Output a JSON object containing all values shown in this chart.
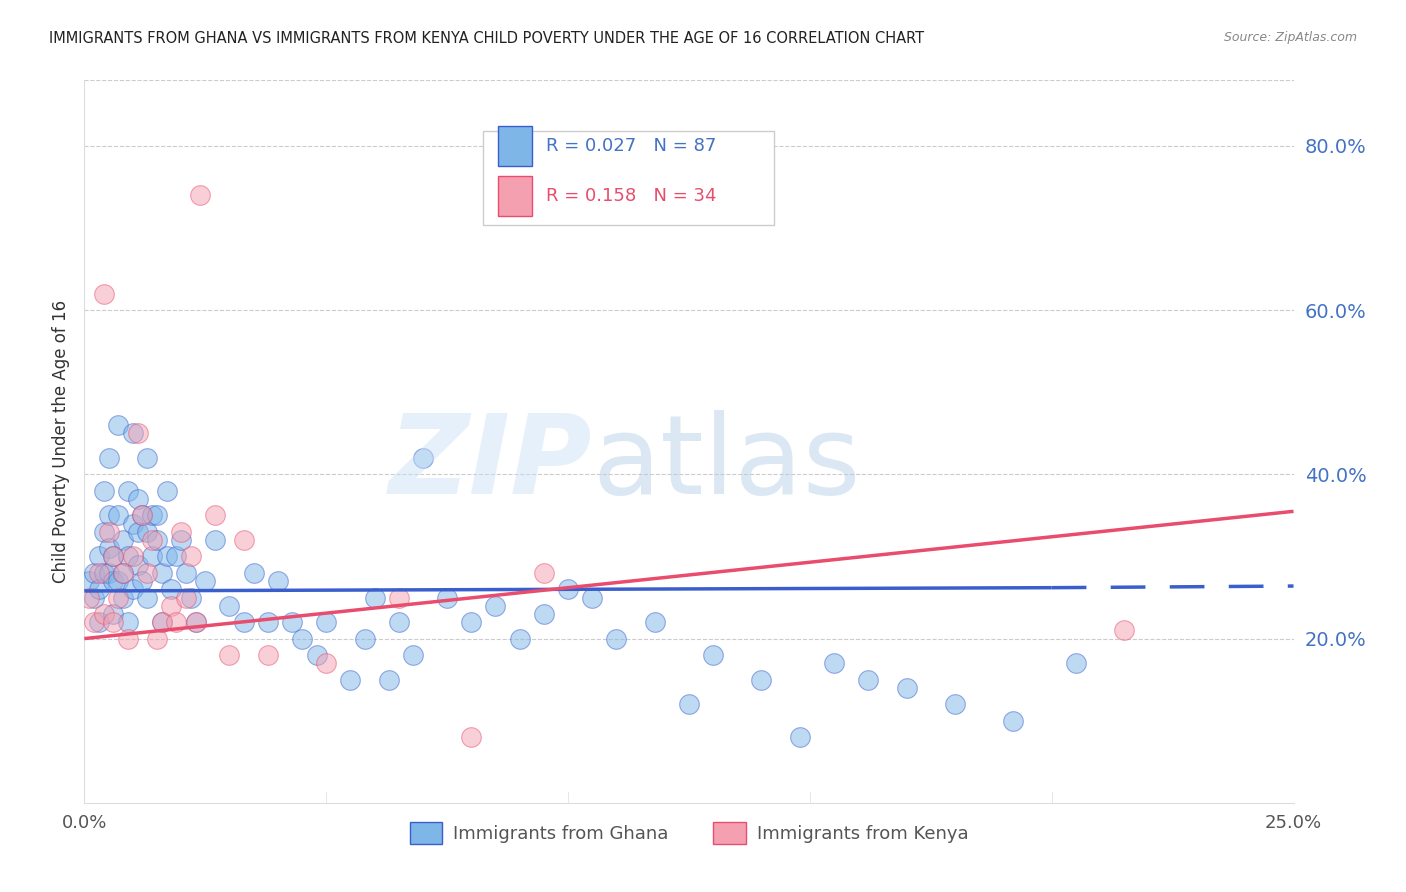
{
  "title": "IMMIGRANTS FROM GHANA VS IMMIGRANTS FROM KENYA CHILD POVERTY UNDER THE AGE OF 16 CORRELATION CHART",
  "source": "Source: ZipAtlas.com",
  "ylabel": "Child Poverty Under the Age of 16",
  "xlim": [
    0.0,
    0.25
  ],
  "ylim": [
    0.0,
    0.88
  ],
  "xticks": [
    0.0,
    0.05,
    0.1,
    0.15,
    0.2,
    0.25
  ],
  "xtick_labels": [
    "0.0%",
    "",
    "",
    "",
    "",
    "25.0%"
  ],
  "yticks_right": [
    0.2,
    0.4,
    0.6,
    0.8
  ],
  "ytick_labels_right": [
    "20.0%",
    "40.0%",
    "60.0%",
    "80.0%"
  ],
  "ghana_color": "#7EB6E8",
  "kenya_color": "#F4A0B0",
  "ghana_R": 0.027,
  "ghana_N": 87,
  "kenya_R": 0.158,
  "kenya_N": 34,
  "ghana_trend_color": "#3A5FCD",
  "kenya_trend_color": "#E84D6E",
  "ghana_label": "Immigrants from Ghana",
  "kenya_label": "Immigrants from Kenya",
  "ghana_x": [
    0.001,
    0.002,
    0.002,
    0.003,
    0.003,
    0.003,
    0.004,
    0.004,
    0.004,
    0.005,
    0.005,
    0.005,
    0.005,
    0.006,
    0.006,
    0.006,
    0.007,
    0.007,
    0.007,
    0.008,
    0.008,
    0.008,
    0.009,
    0.009,
    0.009,
    0.01,
    0.01,
    0.01,
    0.011,
    0.011,
    0.011,
    0.012,
    0.012,
    0.013,
    0.013,
    0.013,
    0.014,
    0.014,
    0.015,
    0.015,
    0.016,
    0.016,
    0.017,
    0.017,
    0.018,
    0.019,
    0.02,
    0.021,
    0.022,
    0.023,
    0.025,
    0.027,
    0.03,
    0.033,
    0.035,
    0.038,
    0.04,
    0.043,
    0.045,
    0.048,
    0.05,
    0.055,
    0.058,
    0.06,
    0.063,
    0.065,
    0.068,
    0.07,
    0.075,
    0.08,
    0.085,
    0.09,
    0.095,
    0.1,
    0.105,
    0.11,
    0.118,
    0.125,
    0.13,
    0.14,
    0.148,
    0.155,
    0.162,
    0.17,
    0.18,
    0.192,
    0.205
  ],
  "ghana_y": [
    0.27,
    0.25,
    0.28,
    0.3,
    0.26,
    0.22,
    0.33,
    0.38,
    0.28,
    0.35,
    0.31,
    0.28,
    0.42,
    0.3,
    0.27,
    0.23,
    0.46,
    0.35,
    0.27,
    0.32,
    0.28,
    0.25,
    0.38,
    0.3,
    0.22,
    0.45,
    0.34,
    0.26,
    0.33,
    0.37,
    0.29,
    0.35,
    0.27,
    0.42,
    0.33,
    0.25,
    0.35,
    0.3,
    0.32,
    0.35,
    0.28,
    0.22,
    0.38,
    0.3,
    0.26,
    0.3,
    0.32,
    0.28,
    0.25,
    0.22,
    0.27,
    0.32,
    0.24,
    0.22,
    0.28,
    0.22,
    0.27,
    0.22,
    0.2,
    0.18,
    0.22,
    0.15,
    0.2,
    0.25,
    0.15,
    0.22,
    0.18,
    0.42,
    0.25,
    0.22,
    0.24,
    0.2,
    0.23,
    0.26,
    0.25,
    0.2,
    0.22,
    0.12,
    0.18,
    0.15,
    0.08,
    0.17,
    0.15,
    0.14,
    0.12,
    0.1,
    0.17
  ],
  "kenya_x": [
    0.001,
    0.002,
    0.003,
    0.004,
    0.004,
    0.005,
    0.006,
    0.006,
    0.007,
    0.008,
    0.009,
    0.01,
    0.011,
    0.012,
    0.013,
    0.014,
    0.015,
    0.016,
    0.018,
    0.019,
    0.02,
    0.021,
    0.022,
    0.023,
    0.024,
    0.027,
    0.03,
    0.033,
    0.038,
    0.05,
    0.065,
    0.08,
    0.095,
    0.215
  ],
  "kenya_y": [
    0.25,
    0.22,
    0.28,
    0.23,
    0.62,
    0.33,
    0.3,
    0.22,
    0.25,
    0.28,
    0.2,
    0.3,
    0.45,
    0.35,
    0.28,
    0.32,
    0.2,
    0.22,
    0.24,
    0.22,
    0.33,
    0.25,
    0.3,
    0.22,
    0.74,
    0.35,
    0.18,
    0.32,
    0.18,
    0.17,
    0.25,
    0.08,
    0.28,
    0.21
  ],
  "ghana_trend_x0": 0.0,
  "ghana_trend_x1": 0.2,
  "ghana_trend_x2": 0.25,
  "ghana_trend_y0": 0.258,
  "ghana_trend_y1": 0.262,
  "ghana_trend_y2": 0.264,
  "kenya_trend_x0": 0.0,
  "kenya_trend_x1": 0.25,
  "kenya_trend_y0": 0.2,
  "kenya_trend_y1": 0.355
}
